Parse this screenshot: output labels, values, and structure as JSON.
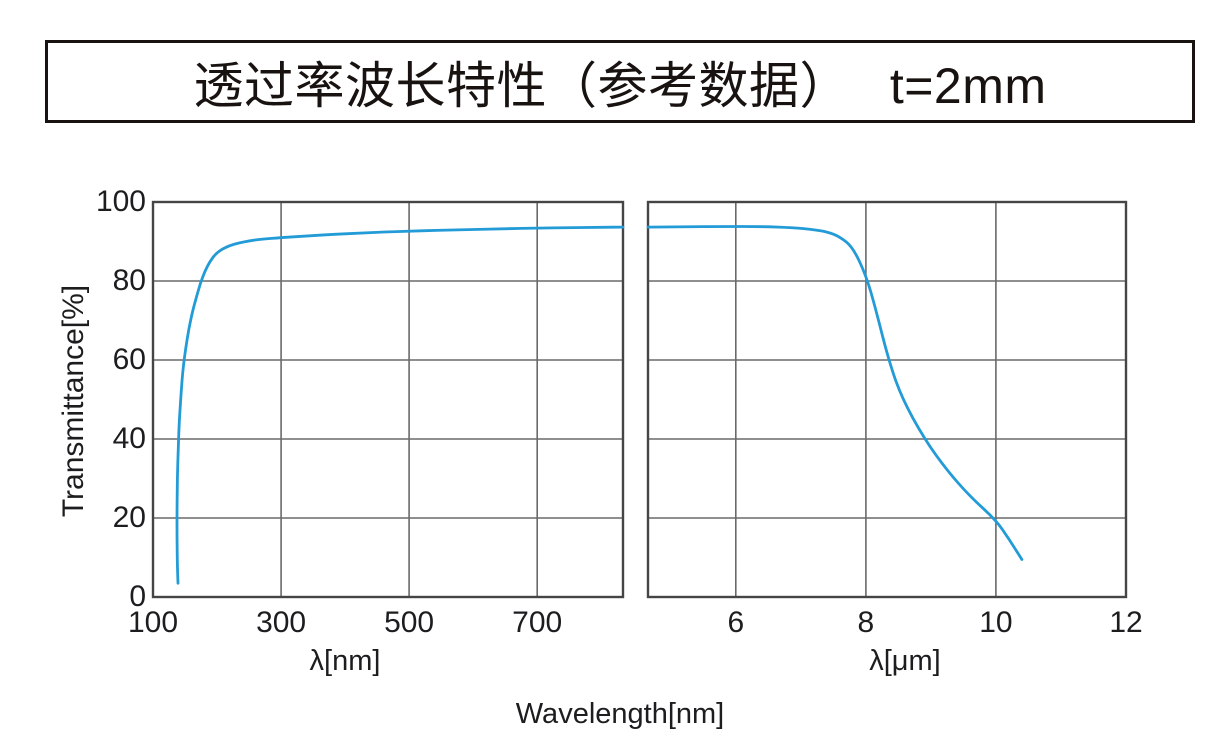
{
  "title": {
    "text": "透过率波长特性（参考数据）　 t=2mm"
  },
  "axis": {
    "y_label": "Transmittance[%]",
    "shared_x_label": "Wavelength[nm]"
  },
  "colors": {
    "curve": "#229bd7",
    "grid": "#6a6a6a",
    "border": "#454545",
    "text": "#1d1d1f",
    "title_border": "#181210"
  },
  "chart_data": {
    "type": "line",
    "title": "透过率波长特性（参考数据） t=2mm",
    "ylabel": "Transmittance[%]",
    "xlabel_shared": "Wavelength[nm]",
    "ylim": [
      0,
      100
    ],
    "yticks": [
      0,
      20,
      40,
      60,
      80,
      100
    ],
    "grid": true,
    "legend": "none",
    "panels": [
      {
        "xlabel": "λ[nm]",
        "x_unit": "nm",
        "xlim": [
          100,
          834
        ],
        "xticks": [
          100,
          300,
          500,
          700
        ],
        "series": {
          "name": "transmittance",
          "color": "#229bd7",
          "points": [
            [
              139,
              3.5
            ],
            [
              138,
              8
            ],
            [
              137.5,
              15
            ],
            [
              137.5,
              22
            ],
            [
              138,
              30
            ],
            [
              139.5,
              38
            ],
            [
              141,
              45
            ],
            [
              144,
              52
            ],
            [
              147,
              58
            ],
            [
              151,
              63
            ],
            [
              156,
              68
            ],
            [
              162,
              72.5
            ],
            [
              168,
              76
            ],
            [
              174,
              79.5
            ],
            [
              181,
              82.5
            ],
            [
              189,
              85
            ],
            [
              198,
              86.9
            ],
            [
              208,
              88.1
            ],
            [
              220,
              89
            ],
            [
              235,
              89.7
            ],
            [
              252,
              90.2
            ],
            [
              270,
              90.6
            ],
            [
              300,
              91
            ],
            [
              340,
              91.4
            ],
            [
              380,
              91.8
            ],
            [
              420,
              92.1
            ],
            [
              460,
              92.4
            ],
            [
              500,
              92.6
            ],
            [
              550,
              92.85
            ],
            [
              600,
              93.05
            ],
            [
              650,
              93.25
            ],
            [
              700,
              93.4
            ],
            [
              750,
              93.5
            ],
            [
              800,
              93.6
            ],
            [
              834,
              93.65
            ]
          ]
        }
      },
      {
        "xlabel": "λ[μm]",
        "x_unit": "μm",
        "xlim": [
          4.65,
          12
        ],
        "xticks": [
          6,
          8,
          10,
          12
        ],
        "series": {
          "name": "transmittance",
          "color": "#229bd7",
          "points": [
            [
              4.65,
              93.65
            ],
            [
              5.2,
              93.75
            ],
            [
              5.8,
              93.8
            ],
            [
              6.4,
              93.8
            ],
            [
              6.9,
              93.5
            ],
            [
              7.15,
              93.1
            ],
            [
              7.4,
              92.5
            ],
            [
              7.6,
              91.2
            ],
            [
              7.8,
              88.5
            ],
            [
              8.0,
              81.5
            ],
            [
              8.15,
              73
            ],
            [
              8.35,
              60
            ],
            [
              8.55,
              50.5
            ],
            [
              8.9,
              40
            ],
            [
              9.25,
              32
            ],
            [
              9.6,
              25.5
            ],
            [
              10.0,
              19.5
            ],
            [
              10.2,
              14.7
            ],
            [
              10.4,
              9.5
            ]
          ]
        }
      }
    ]
  }
}
